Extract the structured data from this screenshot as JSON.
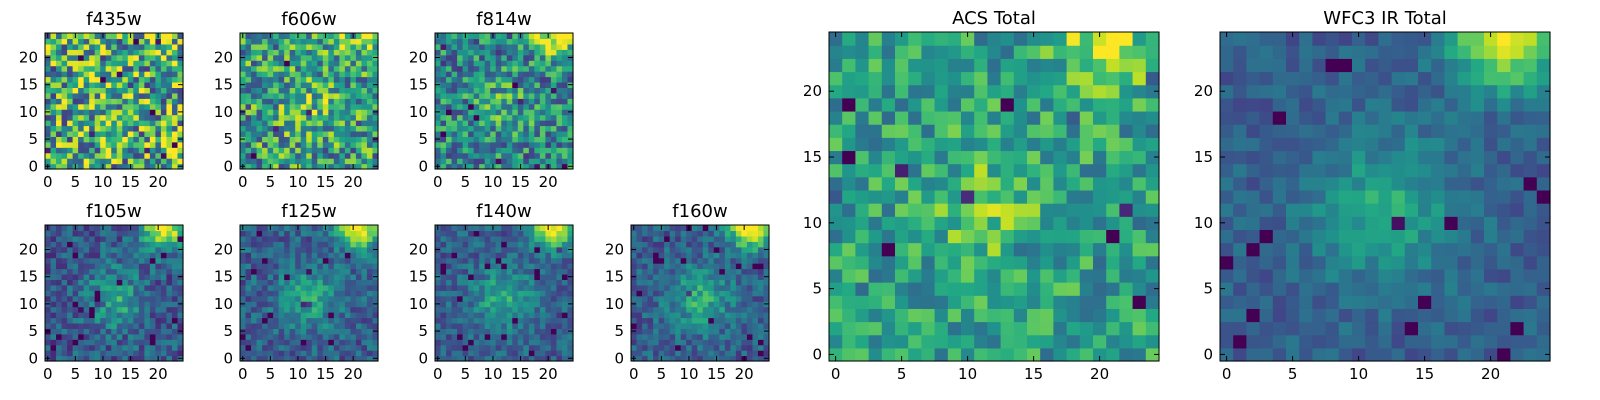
{
  "chart_data": [
    {
      "type": "heatmap",
      "title": "f435w",
      "grid": 25,
      "xticks": [
        0,
        5,
        10,
        15,
        20
      ],
      "yticks": [
        0,
        5,
        10,
        15,
        20
      ],
      "xlim": [
        -0.5,
        24.5
      ],
      "ylim": [
        -0.5,
        24.5
      ],
      "colormap": "viridis",
      "background_level": 0.62,
      "noise": 0.45,
      "center_peak": 0.0,
      "corner_peak": 0.1
    },
    {
      "type": "heatmap",
      "title": "f606w",
      "grid": 25,
      "xticks": [
        0,
        5,
        10,
        15,
        20
      ],
      "yticks": [
        0,
        5,
        10,
        15,
        20
      ],
      "xlim": [
        -0.5,
        24.5
      ],
      "ylim": [
        -0.5,
        24.5
      ],
      "colormap": "viridis",
      "background_level": 0.55,
      "noise": 0.35,
      "center_peak": 0.15,
      "corner_peak": 0.45
    },
    {
      "type": "heatmap",
      "title": "f814w",
      "grid": 25,
      "xticks": [
        0,
        5,
        10,
        15,
        20
      ],
      "yticks": [
        0,
        5,
        10,
        15,
        20
      ],
      "xlim": [
        -0.5,
        24.5
      ],
      "ylim": [
        -0.5,
        24.5
      ],
      "colormap": "viridis",
      "background_level": 0.45,
      "noise": 0.3,
      "center_peak": 0.2,
      "corner_peak": 0.6
    },
    {
      "type": "heatmap",
      "title": "f105w",
      "grid": 25,
      "xticks": [
        0,
        5,
        10,
        15,
        20
      ],
      "yticks": [
        0,
        5,
        10,
        15,
        20
      ],
      "xlim": [
        -0.5,
        24.5
      ],
      "ylim": [
        -0.5,
        24.5
      ],
      "colormap": "viridis",
      "background_level": 0.28,
      "noise": 0.18,
      "center_peak": 0.3,
      "corner_peak": 0.75
    },
    {
      "type": "heatmap",
      "title": "f125w",
      "grid": 25,
      "xticks": [
        0,
        5,
        10,
        15,
        20
      ],
      "yticks": [
        0,
        5,
        10,
        15,
        20
      ],
      "xlim": [
        -0.5,
        24.5
      ],
      "ylim": [
        -0.5,
        24.5
      ],
      "colormap": "viridis",
      "background_level": 0.3,
      "noise": 0.16,
      "center_peak": 0.28,
      "corner_peak": 0.75
    },
    {
      "type": "heatmap",
      "title": "f140w",
      "grid": 25,
      "xticks": [
        0,
        5,
        10,
        15,
        20
      ],
      "yticks": [
        0,
        5,
        10,
        15,
        20
      ],
      "xlim": [
        -0.5,
        24.5
      ],
      "ylim": [
        -0.5,
        24.5
      ],
      "colormap": "viridis",
      "background_level": 0.3,
      "noise": 0.15,
      "center_peak": 0.3,
      "corner_peak": 0.75
    },
    {
      "type": "heatmap",
      "title": "f160w",
      "grid": 25,
      "xticks": [
        0,
        5,
        10,
        15,
        20
      ],
      "yticks": [
        0,
        5,
        10,
        15,
        20
      ],
      "xlim": [
        -0.5,
        24.5
      ],
      "ylim": [
        -0.5,
        24.5
      ],
      "colormap": "viridis",
      "background_level": 0.3,
      "noise": 0.15,
      "center_peak": 0.32,
      "corner_peak": 0.75
    },
    {
      "type": "heatmap",
      "title": "ACS Total",
      "grid": 25,
      "xticks": [
        0,
        5,
        10,
        15,
        20
      ],
      "yticks": [
        0,
        5,
        10,
        15,
        20
      ],
      "xlim": [
        -0.5,
        24.5
      ],
      "ylim": [
        -0.5,
        24.5
      ],
      "colormap": "viridis",
      "background_level": 0.55,
      "noise": 0.22,
      "center_peak": 0.2,
      "corner_peak": 0.45
    },
    {
      "type": "heatmap",
      "title": "WFC3 IR Total",
      "grid": 25,
      "xticks": [
        0,
        5,
        10,
        15,
        20
      ],
      "yticks": [
        0,
        5,
        10,
        15,
        20
      ],
      "xlim": [
        -0.5,
        24.5
      ],
      "ylim": [
        -0.5,
        24.5
      ],
      "colormap": "viridis",
      "background_level": 0.3,
      "noise": 0.1,
      "center_peak": 0.3,
      "corner_peak": 0.7
    }
  ]
}
